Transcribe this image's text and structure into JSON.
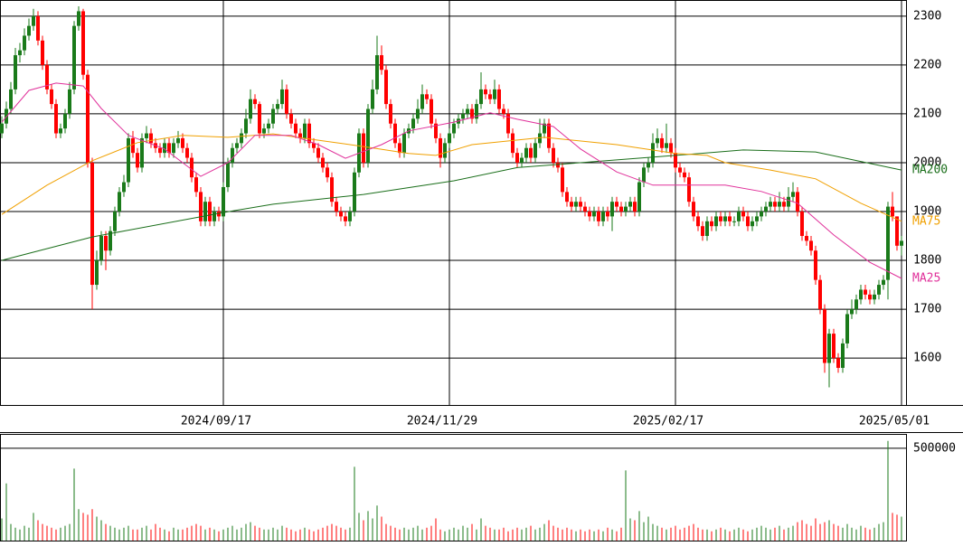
{
  "chart_data": {
    "type": "candlestick",
    "xlim": [
      -0.4,
      199.6
    ],
    "xticks": [
      {
        "value": 49,
        "label": "2024/09/17"
      },
      {
        "value": 99,
        "label": "2024/11/29"
      },
      {
        "value": 149,
        "label": "2025/02/17"
      },
      {
        "value": 199,
        "label": "2025/05/01"
      }
    ],
    "ylim": [
      1504,
      2333
    ],
    "yticks": [
      1600,
      1700,
      1800,
      1900,
      2000,
      2100,
      2200,
      2300
    ],
    "grid": true,
    "up_color": "#1a7a1a",
    "down_color": "#ff0000",
    "open": [
      2060,
      2080,
      2110,
      2150,
      2220,
      2230,
      2260,
      2280,
      2300,
      2250,
      2200,
      2150,
      2120,
      2060,
      2070,
      2100,
      2150,
      2280,
      2310,
      2180,
      2000,
      1750,
      1800,
      1850,
      1820,
      1860,
      1900,
      1940,
      1960,
      2050,
      2020,
      1990,
      2050,
      2060,
      2040,
      2030,
      2020,
      2040,
      2020,
      2040,
      2050,
      2030,
      2010,
      1970,
      1940,
      1880,
      1920,
      1880,
      1900,
      1890,
      1950,
      2000,
      2030,
      2040,
      2060,
      2090,
      2130,
      2120,
      2060,
      2070,
      2080,
      2110,
      2120,
      2150,
      2100,
      2080,
      2060,
      2050,
      2080,
      2040,
      2030,
      2010,
      1990,
      1970,
      1920,
      1900,
      1890,
      1880,
      1900,
      1980,
      2060,
      2000,
      2110,
      2150,
      2220,
      2190,
      2120,
      2080,
      2040,
      2020,
      2060,
      2070,
      2090,
      2110,
      2140,
      2130,
      2080,
      2050,
      2010,
      2040,
      2060,
      2080,
      2090,
      2100,
      2110,
      2090,
      2120,
      2150,
      2140,
      2130,
      2150,
      2110,
      2100,
      2060,
      2020,
      2000,
      2010,
      2030,
      2010,
      2040,
      2060,
      2080,
      2030,
      2000,
      1990,
      1940,
      1920,
      1910,
      1920,
      1910,
      1900,
      1890,
      1900,
      1880,
      1900,
      1890,
      1920,
      1910,
      1900,
      1910,
      1920,
      1900,
      1960,
      1990,
      2000,
      2040,
      2050,
      2030,
      2040,
      2020,
      1990,
      1980,
      1970,
      1920,
      1890,
      1870,
      1850,
      1880,
      1870,
      1890,
      1880,
      1890,
      1880,
      1880,
      1900,
      1890,
      1870,
      1880,
      1890,
      1900,
      1910,
      1920,
      1910,
      1920,
      1910,
      1930,
      1940,
      1900,
      1850,
      1840,
      1820,
      1760,
      1700,
      1590,
      1650,
      1600,
      1580,
      1630,
      1690,
      1700,
      1720,
      1740,
      1730,
      1720,
      1730,
      1750,
      1760,
      1910,
      1890,
      1830
    ],
    "high": [
      2095,
      2125,
      2165,
      2235,
      2245,
      2275,
      2295,
      2315,
      2310,
      2260,
      2210,
      2160,
      2130,
      2080,
      2110,
      2165,
      2290,
      2320,
      2315,
      2190,
      2010,
      1820,
      1860,
      1860,
      1870,
      1910,
      1950,
      1975,
      2060,
      2065,
      2030,
      2060,
      2075,
      2070,
      2050,
      2040,
      2050,
      2050,
      2050,
      2065,
      2060,
      2040,
      2020,
      1980,
      1950,
      1930,
      1930,
      1910,
      1910,
      1960,
      2010,
      2040,
      2050,
      2070,
      2110,
      2150,
      2140,
      2125,
      2080,
      2090,
      2120,
      2130,
      2170,
      2160,
      2110,
      2090,
      2070,
      2090,
      2090,
      2050,
      2040,
      2020,
      2000,
      1980,
      1930,
      1910,
      1900,
      1910,
      1990,
      2070,
      2070,
      2120,
      2170,
      2260,
      2240,
      2200,
      2130,
      2090,
      2050,
      2070,
      2080,
      2100,
      2130,
      2160,
      2150,
      2140,
      2090,
      2060,
      2050,
      2070,
      2090,
      2100,
      2110,
      2120,
      2120,
      2130,
      2185,
      2160,
      2150,
      2170,
      2160,
      2120,
      2110,
      2070,
      2030,
      2020,
      2040,
      2040,
      2050,
      2090,
      2090,
      2090,
      2040,
      2010,
      2000,
      1950,
      1930,
      1930,
      1930,
      1920,
      1910,
      1910,
      1910,
      1910,
      1910,
      1930,
      1930,
      1920,
      1920,
      1930,
      1930,
      1970,
      2000,
      2010,
      2060,
      2070,
      2060,
      2080,
      2050,
      2030,
      2000,
      1990,
      1980,
      1930,
      1900,
      1880,
      1890,
      1890,
      1900,
      1900,
      1900,
      1900,
      1890,
      1910,
      1910,
      1900,
      1890,
      1900,
      1910,
      1920,
      1930,
      1930,
      1940,
      1930,
      1950,
      1960,
      1950,
      1910,
      1860,
      1850,
      1830,
      1770,
      1710,
      1660,
      1660,
      1610,
      1640,
      1700,
      1720,
      1730,
      1750,
      1750,
      1740,
      1740,
      1760,
      1770,
      1920,
      1940,
      1890,
      1850
    ],
    "low": [
      2050,
      2070,
      2100,
      2140,
      2205,
      2220,
      2250,
      2270,
      2240,
      2190,
      2140,
      2110,
      2050,
      2050,
      2060,
      2090,
      2140,
      2270,
      2170,
      1990,
      1700,
      1740,
      1790,
      1780,
      1810,
      1850,
      1890,
      1930,
      1950,
      2010,
      1980,
      1980,
      2040,
      2030,
      2020,
      2010,
      2010,
      2010,
      2010,
      2030,
      2020,
      2000,
      1960,
      1930,
      1870,
      1870,
      1870,
      1870,
      1880,
      1880,
      1940,
      1990,
      2020,
      2030,
      2050,
      2080,
      2110,
      2050,
      2050,
      2060,
      2070,
      2100,
      2110,
      2090,
      2070,
      2050,
      2040,
      2040,
      2030,
      2020,
      2000,
      1980,
      1960,
      1910,
      1890,
      1880,
      1870,
      1870,
      1890,
      1970,
      1990,
      1990,
      2100,
      2140,
      2180,
      2110,
      2070,
      2030,
      2010,
      2010,
      2050,
      2060,
      2080,
      2100,
      2120,
      2070,
      2040,
      1990,
      2000,
      2030,
      2050,
      2070,
      2080,
      2090,
      2080,
      2080,
      2110,
      2130,
      2120,
      2120,
      2100,
      2090,
      2050,
      2010,
      1990,
      1990,
      2000,
      2000,
      2000,
      2030,
      2050,
      2020,
      1990,
      1980,
      1930,
      1910,
      1900,
      1900,
      1900,
      1890,
      1880,
      1880,
      1870,
      1870,
      1880,
      1860,
      1900,
      1890,
      1890,
      1900,
      1890,
      1890,
      1950,
      1980,
      1990,
      2030,
      2020,
      2020,
      2010,
      1980,
      1970,
      1960,
      1910,
      1880,
      1860,
      1840,
      1840,
      1860,
      1860,
      1870,
      1870,
      1870,
      1870,
      1870,
      1880,
      1860,
      1860,
      1870,
      1880,
      1890,
      1900,
      1900,
      1900,
      1900,
      1900,
      1920,
      1890,
      1840,
      1830,
      1810,
      1750,
      1690,
      1570,
      1540,
      1590,
      1570,
      1570,
      1620,
      1680,
      1690,
      1710,
      1720,
      1710,
      1710,
      1720,
      1740,
      1720,
      1880,
      1820,
      1810
    ],
    "close": [
      2080,
      2110,
      2150,
      2220,
      2230,
      2260,
      2280,
      2300,
      2250,
      2200,
      2150,
      2120,
      2060,
      2070,
      2100,
      2150,
      2280,
      2310,
      2180,
      2000,
      1750,
      1800,
      1850,
      1820,
      1860,
      1900,
      1940,
      1960,
      2050,
      2020,
      1990,
      2050,
      2060,
      2040,
      2030,
      2020,
      2040,
      2020,
      2040,
      2050,
      2030,
      2010,
      1970,
      1940,
      1880,
      1920,
      1880,
      1900,
      1890,
      1950,
      2000,
      2030,
      2040,
      2060,
      2090,
      2130,
      2120,
      2060,
      2070,
      2080,
      2110,
      2120,
      2150,
      2100,
      2080,
      2060,
      2050,
      2080,
      2040,
      2030,
      2010,
      1990,
      1970,
      1920,
      1900,
      1890,
      1880,
      1900,
      1980,
      2060,
      2000,
      2110,
      2150,
      2220,
      2190,
      2120,
      2080,
      2040,
      2020,
      2060,
      2070,
      2090,
      2110,
      2140,
      2130,
      2080,
      2050,
      2010,
      2040,
      2060,
      2080,
      2090,
      2100,
      2110,
      2090,
      2120,
      2150,
      2140,
      2130,
      2150,
      2110,
      2100,
      2060,
      2020,
      2000,
      2010,
      2030,
      2010,
      2040,
      2060,
      2080,
      2030,
      2000,
      1990,
      1940,
      1920,
      1910,
      1920,
      1910,
      1900,
      1890,
      1900,
      1880,
      1900,
      1890,
      1920,
      1910,
      1900,
      1910,
      1920,
      1900,
      1960,
      1990,
      2000,
      2040,
      2050,
      2030,
      2040,
      2020,
      1990,
      1980,
      1970,
      1920,
      1890,
      1870,
      1850,
      1880,
      1870,
      1890,
      1880,
      1890,
      1880,
      1880,
      1900,
      1890,
      1870,
      1880,
      1890,
      1900,
      1910,
      1920,
      1910,
      1920,
      1910,
      1930,
      1940,
      1900,
      1850,
      1840,
      1820,
      1760,
      1700,
      1590,
      1650,
      1600,
      1580,
      1630,
      1690,
      1700,
      1720,
      1740,
      1730,
      1720,
      1730,
      1750,
      1760,
      1910,
      1890,
      1830,
      1840
    ],
    "series": [
      {
        "name": "MA200",
        "color": "#1a6e1a",
        "x": [
          0,
          20,
          49,
          60,
          80,
          100,
          114,
          149,
          164,
          180,
          199
        ],
        "values": [
          1800,
          1848,
          1898,
          1915,
          1935,
          1963,
          1990,
          2015,
          2026,
          2022,
          1985
        ]
      },
      {
        "name": "MA75",
        "color": "#f0a000",
        "x": [
          0,
          10,
          20,
          30,
          40,
          50,
          60,
          70,
          80,
          90,
          96,
          104,
          120,
          136,
          149,
          156,
          160,
          170,
          180,
          190,
          199
        ],
        "values": [
          1894,
          1954,
          2004,
          2041,
          2056,
          2052,
          2059,
          2046,
          2033,
          2019,
          2015,
          2037,
          2052,
          2037,
          2019,
          2015,
          2000,
          1985,
          1967,
          1917,
          1880
        ]
      },
      {
        "name": "MA25",
        "color": "#e0309a",
        "x": [
          0,
          6,
          12,
          18,
          22,
          28,
          36,
          44,
          50,
          56,
          64,
          70,
          76,
          84,
          90,
          100,
          108,
          114,
          122,
          128,
          136,
          144,
          152,
          160,
          168,
          176,
          184,
          192,
          199
        ],
        "values": [
          2083,
          2148,
          2163,
          2157,
          2111,
          2056,
          2028,
          1972,
          2000,
          2056,
          2056,
          2037,
          2009,
          2037,
          2065,
          2083,
          2102,
          2089,
          2074,
          2028,
          1981,
          1954,
          1954,
          1954,
          1941,
          1917,
          1852,
          1796,
          1763
        ]
      }
    ],
    "volume": {
      "ylim": [
        0,
        578000
      ],
      "yticks": [
        500000
      ],
      "values": [
        120000,
        310000,
        90000,
        70000,
        60000,
        80000,
        70000,
        150000,
        110000,
        90000,
        80000,
        70000,
        60000,
        70000,
        80000,
        90000,
        390000,
        170000,
        150000,
        140000,
        170000,
        130000,
        110000,
        90000,
        80000,
        70000,
        60000,
        70000,
        80000,
        60000,
        60000,
        70000,
        80000,
        60000,
        90000,
        70000,
        60000,
        50000,
        70000,
        60000,
        60000,
        70000,
        80000,
        90000,
        80000,
        60000,
        70000,
        60000,
        50000,
        60000,
        70000,
        80000,
        60000,
        70000,
        90000,
        100000,
        80000,
        70000,
        60000,
        60000,
        70000,
        60000,
        80000,
        70000,
        60000,
        50000,
        60000,
        70000,
        60000,
        50000,
        60000,
        70000,
        80000,
        90000,
        80000,
        70000,
        60000,
        70000,
        400000,
        150000,
        110000,
        160000,
        120000,
        190000,
        130000,
        90000,
        80000,
        70000,
        60000,
        70000,
        60000,
        70000,
        80000,
        60000,
        70000,
        80000,
        120000,
        60000,
        50000,
        60000,
        70000,
        60000,
        80000,
        70000,
        90000,
        60000,
        120000,
        80000,
        70000,
        60000,
        60000,
        70000,
        50000,
        60000,
        70000,
        60000,
        70000,
        80000,
        60000,
        70000,
        90000,
        110000,
        80000,
        70000,
        60000,
        70000,
        60000,
        50000,
        60000,
        50000,
        60000,
        50000,
        60000,
        50000,
        70000,
        60000,
        50000,
        70000,
        380000,
        120000,
        110000,
        160000,
        100000,
        130000,
        90000,
        80000,
        70000,
        60000,
        70000,
        80000,
        60000,
        70000,
        80000,
        90000,
        70000,
        60000,
        60000,
        50000,
        60000,
        70000,
        60000,
        50000,
        60000,
        70000,
        60000,
        50000,
        60000,
        70000,
        80000,
        70000,
        60000,
        70000,
        80000,
        60000,
        70000,
        80000,
        100000,
        110000,
        90000,
        80000,
        120000,
        90000,
        100000,
        110000,
        90000,
        80000,
        70000,
        90000,
        70000,
        60000,
        80000,
        70000,
        60000,
        70000,
        90000,
        100000,
        540000,
        150000,
        140000,
        130000
      ]
    }
  }
}
